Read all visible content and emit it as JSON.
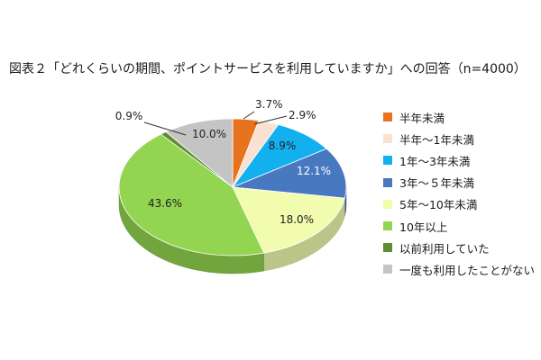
{
  "title": "図表２「どれくらいの期間、ポイントサービスを利用していますか」への回答（n=4000）",
  "chart_data": {
    "type": "pie",
    "title": "図表２「どれくらいの期間、ポイントサービスを利用していますか」への回答（n=4000）",
    "unit": "%",
    "legend_position": "right",
    "slices": [
      {
        "label": "半年未満",
        "value": 3.7,
        "value_label": "3.7%",
        "color": "#e8731e"
      },
      {
        "label": "半年～1年未満",
        "value": 2.9,
        "value_label": "2.9%",
        "color": "#fbe1d2"
      },
      {
        "label": "1年～3年未満",
        "value": 8.9,
        "value_label": "8.9%",
        "color": "#12b0ef"
      },
      {
        "label": "3年～５年未満",
        "value": 12.1,
        "value_label": "12.1%",
        "color": "#4778c0"
      },
      {
        "label": "5年～10年未満",
        "value": 18.0,
        "value_label": "18.0%",
        "color": "#f1fcae"
      },
      {
        "label": "10年以上",
        "value": 43.6,
        "value_label": "43.6%",
        "color": "#93d450"
      },
      {
        "label": "以前利用していた",
        "value": 0.9,
        "value_label": "0.9%",
        "color": "#5e8d34"
      },
      {
        "label": "一度も利用したことがない",
        "value": 10.0,
        "value_label": "10.0%",
        "color": "#c4c4c4"
      }
    ]
  }
}
